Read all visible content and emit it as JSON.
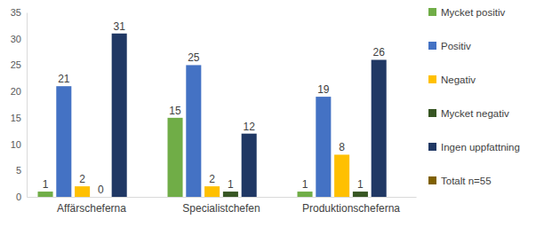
{
  "chart_data": {
    "type": "bar",
    "categories": [
      "Affärscheferna",
      "Specialistchefen",
      "Produktionscheferna"
    ],
    "series": [
      {
        "name": "Mycket positiv",
        "color": "#70ad47",
        "values": [
          1,
          15,
          1
        ]
      },
      {
        "name": "Positiv",
        "color": "#4472c4",
        "values": [
          21,
          25,
          19
        ]
      },
      {
        "name": "Negativ",
        "color": "#ffc000",
        "values": [
          2,
          2,
          8
        ]
      },
      {
        "name": "Mycket negativ",
        "color": "#375623",
        "values": [
          0,
          1,
          1
        ]
      },
      {
        "name": "Ingen uppfattning",
        "color": "#203864",
        "values": [
          31,
          12,
          26
        ]
      },
      {
        "name": "Totalt n=55",
        "color": "#7f6000",
        "values": [
          null,
          null,
          null
        ]
      }
    ],
    "ylim": [
      0,
      35
    ],
    "yticks": [
      0,
      5,
      10,
      15,
      20,
      25,
      30,
      35
    ],
    "grid": false,
    "legend": "right",
    "data_labels": true
  }
}
